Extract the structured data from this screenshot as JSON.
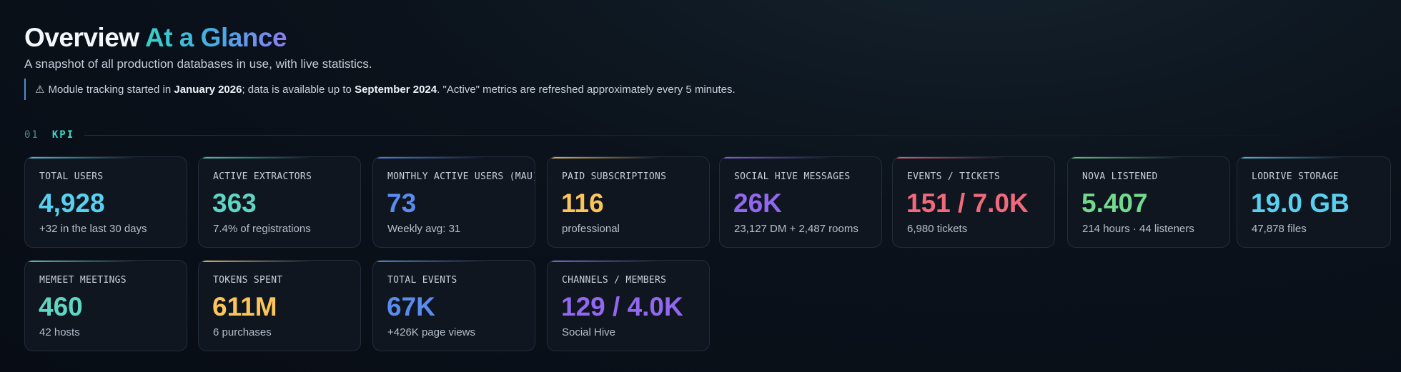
{
  "header": {
    "title_main": "Overview",
    "title_accent": "At a Glance",
    "subtitle": "A snapshot of all production databases in use, with live statistics.",
    "notice": {
      "icon": "warning-icon",
      "text_1": "Module tracking started in",
      "bold_1": "January 2026",
      "text_2": "; data is available up to",
      "bold_2": "September 2024",
      "text_3": ". \"Active\" metrics are refreshed approximately every 5 minutes."
    }
  },
  "section": {
    "number": "01",
    "name": "KPI"
  },
  "colors": {
    "cyan": "#5ad0f0",
    "teal": "#5fd6c4",
    "blue": "#5a8cf0",
    "amber": "#fbc55a",
    "purple": "#9368f0",
    "red": "#f06a7c",
    "green": "#73d98e"
  },
  "cards": [
    {
      "label": "TOTAL USERS",
      "value": "4,928",
      "sub": "+32 in the last 30 days",
      "color": "#5ad0f0"
    },
    {
      "label": "ACTIVE EXTRACTORS",
      "value": "363",
      "sub": "7.4% of registrations",
      "color": "#5fd6c4"
    },
    {
      "label": "MONTHLY ACTIVE USERS (MAU)",
      "value": "73",
      "sub": "Weekly avg: 31",
      "color": "#5a8cf0"
    },
    {
      "label": "PAID SUBSCRIPTIONS",
      "value": "116",
      "sub": "professional",
      "color": "#fbc55a"
    },
    {
      "label": "SOCIAL HIVE MESSAGES",
      "value": "26K",
      "sub": "23,127 DM + 2,487 rooms",
      "color": "#9368f0"
    },
    {
      "label": "EVENTS / TICKETS",
      "value": "151 / 7.0K",
      "sub": "6,980 tickets",
      "color": "#f06a7c"
    },
    {
      "label": "NOVA LISTENED",
      "value": "5.407",
      "sub": "214 hours · 44 listeners",
      "color": "#73d98e"
    },
    {
      "label": "LODRIVE STORAGE",
      "value": "19.0 GB",
      "sub": "47,878 files",
      "color": "#5ad0f0"
    },
    {
      "label": "MEMEET MEETINGS",
      "value": "460",
      "sub": "42 hosts",
      "color": "#5fd6c4"
    },
    {
      "label": "TOKENS SPENT",
      "value": "611M",
      "sub": "6 purchases",
      "color": "#fbc55a"
    },
    {
      "label": "TOTAL EVENTS",
      "value": "67K",
      "sub": "+426K page views",
      "color": "#5a8cf0"
    },
    {
      "label": "CHANNELS / MEMBERS",
      "value": "129 / 4.0K",
      "sub": "Social Hive",
      "color": "#9368f0"
    }
  ]
}
